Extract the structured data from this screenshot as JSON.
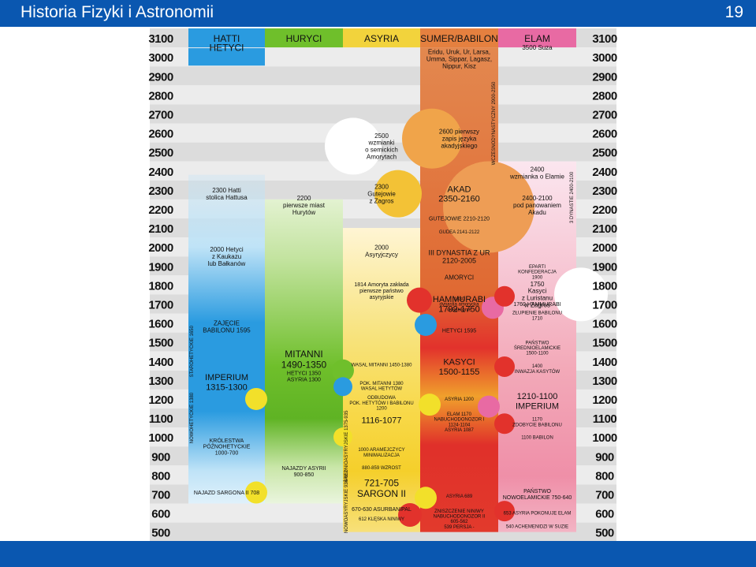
{
  "slide": {
    "title": "Historia Fizyki i Astronomii",
    "page_number": "19"
  },
  "colors": {
    "bar": "#0a57b0",
    "stripe_dark": "#dcdcdc",
    "stripe_light": "#ececec"
  },
  "chart_data": {
    "type": "table",
    "years": [
      "3100",
      "3000",
      "2900",
      "2800",
      "2700",
      "2600",
      "2500",
      "2400",
      "2300",
      "2200",
      "2100",
      "2000",
      "1900",
      "1800",
      "1700",
      "1600",
      "1500",
      "1400",
      "1300",
      "1200",
      "1100",
      "1000",
      "900",
      "800",
      "700",
      "600",
      "500"
    ],
    "columns": [
      {
        "key": "hatti",
        "label": "HATTI",
        "color": "#2a9be0"
      },
      {
        "key": "huryci",
        "label": "HURYCI",
        "color": "#7cc33a"
      },
      {
        "key": "asyria",
        "label": "ASYRIA",
        "color": "#f2d33c"
      },
      {
        "key": "sumer",
        "label": "SUMER/BABILON",
        "color": "#e5803f"
      },
      {
        "key": "elam",
        "label": "ELAM",
        "color": "#e86aa3"
      }
    ],
    "events": [
      {
        "col": "hatti",
        "year": 3050,
        "text": "HETYCI",
        "size": 12
      },
      {
        "col": "hatti",
        "year": 2280,
        "text": "2300 Hatti\nstolica Hattusa",
        "size": 8
      },
      {
        "col": "hatti",
        "year": 1950,
        "text": "2000 Hetyci\nz Kaukazu\nlub Bałkanów",
        "size": 8
      },
      {
        "col": "hatti",
        "year": 1580,
        "text": "ZAJĘCIE\nBABILONU 1595",
        "size": 8
      },
      {
        "col": "hatti",
        "year": 1290,
        "text": "IMPERIUM\n1315-1300",
        "size": 11
      },
      {
        "col": "hatti",
        "year": 950,
        "text": "KRÓLESTWA\nPÓŹNOHETYCKIE\n1000-700",
        "size": 7
      },
      {
        "col": "hatti",
        "year": 708,
        "text": "NAJAZD SARGONA II 708",
        "size": 7
      },
      {
        "col": "huryci",
        "year": 2220,
        "text": "2200\npierwsze miast\nHurytów",
        "size": 8
      },
      {
        "col": "huryci",
        "year": 1410,
        "text": "MITANNI\n1490-1350",
        "size": 12
      },
      {
        "col": "huryci",
        "year": 1320,
        "text": "HETYCI 1350\nASYRIA 1300",
        "size": 7
      },
      {
        "col": "huryci",
        "year": 820,
        "text": "NAJAZDY ASYRII\n900-850",
        "size": 7
      },
      {
        "col": "asyria",
        "year": 2530,
        "text": "2500\nwzmianki\no semickich\nAmorytach",
        "size": 8
      },
      {
        "col": "asyria",
        "year": 2280,
        "text": "2300\nGutejowie\nz Zagros",
        "size": 8
      },
      {
        "col": "asyria",
        "year": 1980,
        "text": "2000\nAsyryjczycy",
        "size": 8
      },
      {
        "col": "asyria",
        "year": 1770,
        "text": "1814 Amoryta zakłada\npierwsze państwo\nasyryjskie",
        "size": 7
      },
      {
        "col": "asyria",
        "year": 1380,
        "text": "WASAL MITANNI 1450-1380",
        "size": 6
      },
      {
        "col": "asyria",
        "year": 1270,
        "text": "POK. MITANNI 1380\nWASAL HETYTÓW",
        "size": 6
      },
      {
        "col": "asyria",
        "year": 1180,
        "text": "ODBUDOWA\nPOK. HETYTÓW I BABILONU\n1200",
        "size": 6
      },
      {
        "col": "asyria",
        "year": 1090,
        "text": "1116-1077",
        "size": 11
      },
      {
        "col": "asyria",
        "year": 920,
        "text": "1000 ARAMEJCZYCY\nMINIMALIZACJA",
        "size": 6
      },
      {
        "col": "asyria",
        "year": 840,
        "text": "880-859 WZROST",
        "size": 6
      },
      {
        "col": "asyria",
        "year": 730,
        "text": "721-705\nSARGON II",
        "size": 12
      },
      {
        "col": "asyria",
        "year": 620,
        "text": "670-630 ASURBANIPAL",
        "size": 7
      },
      {
        "col": "asyria",
        "year": 570,
        "text": "612 KLĘSKA NINIWY",
        "size": 6
      },
      {
        "col": "sumer",
        "year": 2990,
        "text": "Eridu, Uruk, Ur, Larsa,\nUmma, Sippar, Lagasz,\nNippur, Kisz",
        "size": 8
      },
      {
        "col": "sumer",
        "year": 2570,
        "text": "2600 pierwszy\nzapis języka\nakadyjskiego",
        "size": 8
      },
      {
        "col": "sumer",
        "year": 2280,
        "text": "AKAD\n2350-2160",
        "size": 11
      },
      {
        "col": "sumer",
        "year": 2150,
        "text": "GUTEJOWIE 2210-2120",
        "size": 7
      },
      {
        "col": "sumer",
        "year": 2080,
        "text": "GUDEA 2141-2122",
        "size": 6
      },
      {
        "col": "sumer",
        "year": 1950,
        "text": "III DYNASTIA Z UR\n2120-2005",
        "size": 9
      },
      {
        "col": "sumer",
        "year": 1840,
        "text": "AMORYCI",
        "size": 8
      },
      {
        "col": "sumer",
        "year": 1700,
        "text": "1830\ndynastia amorycka\nw Babilonie",
        "size": 6
      },
      {
        "col": "sumer",
        "year": 1700,
        "text": "HAMMURABI\n1792-1750",
        "size": 11
      },
      {
        "col": "sumer",
        "year": 1560,
        "text": "HETYCI 1595",
        "size": 7
      },
      {
        "col": "sumer",
        "year": 1370,
        "text": "KASYCI\n1500-1155",
        "size": 11
      },
      {
        "col": "sumer",
        "year": 1200,
        "text": "ASYRIA 1200",
        "size": 6
      },
      {
        "col": "sumer",
        "year": 1080,
        "text": "ELAM 1170\nNABUCHODONOZOR I\n1124-1104\nASYRIA 1087",
        "size": 6
      },
      {
        "col": "sumer",
        "year": 690,
        "text": "ASYRIA 689",
        "size": 6
      },
      {
        "col": "sumer",
        "year": 570,
        "text": "ZNISZCZENIE NINIWY\nNABUCHODONOZOR II\n605-562\n539 PERSJA -",
        "size": 6
      },
      {
        "col": "elam",
        "year": 3050,
        "text": "3500 Suza",
        "size": 8
      },
      {
        "col": "elam",
        "year": 2390,
        "text": "2400\nwzmianka o Elamie",
        "size": 8
      },
      {
        "col": "elam",
        "year": 2220,
        "text": "2400-2100\npod panowaniem\nAkadu",
        "size": 8
      },
      {
        "col": "elam",
        "year": 1870,
        "text": "EPARTI\nKONFEDERACJA\n1900",
        "size": 6
      },
      {
        "col": "elam",
        "year": 1750,
        "text": "1750\nKasyci\nz Luristanu\nw Zagros",
        "size": 8
      },
      {
        "col": "elam",
        "year": 1700,
        "text": "1760 HAMMURABI",
        "size": 7
      },
      {
        "col": "elam",
        "year": 1640,
        "text": "ZŁUPIENIE BABILONU\n1710",
        "size": 6
      },
      {
        "col": "elam",
        "year": 1470,
        "text": "PAŃSTWO\nŚREDNIOELAMICKIE\n1500-1100",
        "size": 6
      },
      {
        "col": "elam",
        "year": 1360,
        "text": "1400\nINWAZJA KASYTÓW",
        "size": 6
      },
      {
        "col": "elam",
        "year": 1190,
        "text": "1210-1100\nIMPERIUM",
        "size": 11
      },
      {
        "col": "elam",
        "year": 1080,
        "text": "1170\nZDOBYCIE BABILONU",
        "size": 6
      },
      {
        "col": "elam",
        "year": 1000,
        "text": "1100 BABILON",
        "size": 6
      },
      {
        "col": "elam",
        "year": 700,
        "text": "PAŃSTWO\nNOWOELAMICKIE 750-640",
        "size": 7
      },
      {
        "col": "elam",
        "year": 600,
        "text": "653 ASYRIA POKONUJE ELAM",
        "size": 6
      },
      {
        "col": "elam",
        "year": 530,
        "text": "540 ACHEMENIDZI W SUZIE",
        "size": 6
      }
    ],
    "vertical_labels": [
      {
        "col": "hatti",
        "year": 1450,
        "text": "STAROHETYCKIE 1650"
      },
      {
        "col": "hatti",
        "year": 1100,
        "text": "NOWOHETYCKIE 1380"
      },
      {
        "col": "asyria",
        "year": 950,
        "text": "ŚREDNIOASYRYJSKIE 1375-935"
      },
      {
        "col": "asyria",
        "year": 660,
        "text": "NOWOASYRYJSKIE 934-612"
      },
      {
        "col": "sumer",
        "year": 2650,
        "text": "WCZESNODYNASTYCZNY 2900-2350"
      },
      {
        "col": "elam",
        "year": 2260,
        "text": "3 DYNASTIE 2400-2100"
      }
    ]
  }
}
